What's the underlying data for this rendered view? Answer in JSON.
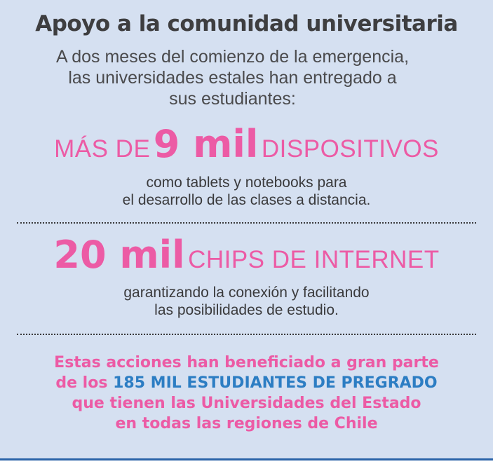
{
  "title": "Apoyo a la comunidad universitaria",
  "intro": {
    "line1": "A dos meses del comienzo de la emergencia,",
    "line2": "las universidades estales han entregado a",
    "line3": "sus estudiantes:"
  },
  "stat1": {
    "prefix": "MÁS DE",
    "number": "9 mil",
    "suffix": "DISPOSITIVOS",
    "desc_line1": "como tablets y notebooks para",
    "desc_line2": "el desarrollo de las clases a distancia."
  },
  "stat2": {
    "number": "20 mil",
    "suffix": "CHIPS DE INTERNET",
    "desc_line1": "garantizando la conexión y facilitando",
    "desc_line2": "las posibilidades de estudio."
  },
  "closing": {
    "line1": "Estas acciones han beneficiado a gran parte",
    "line2_prefix": "de los",
    "line2_highlight": "185 MIL ESTUDIANTES DE PREGRADO",
    "line3": "que tienen las Universidades del Estado",
    "line4": "en todas las regiones de Chile"
  },
  "colors": {
    "background": "#d5e0f1",
    "pink": "#ec5ba5",
    "blue": "#2c7dc3",
    "text": "#3a3a3c",
    "border": "#2b63a8"
  }
}
